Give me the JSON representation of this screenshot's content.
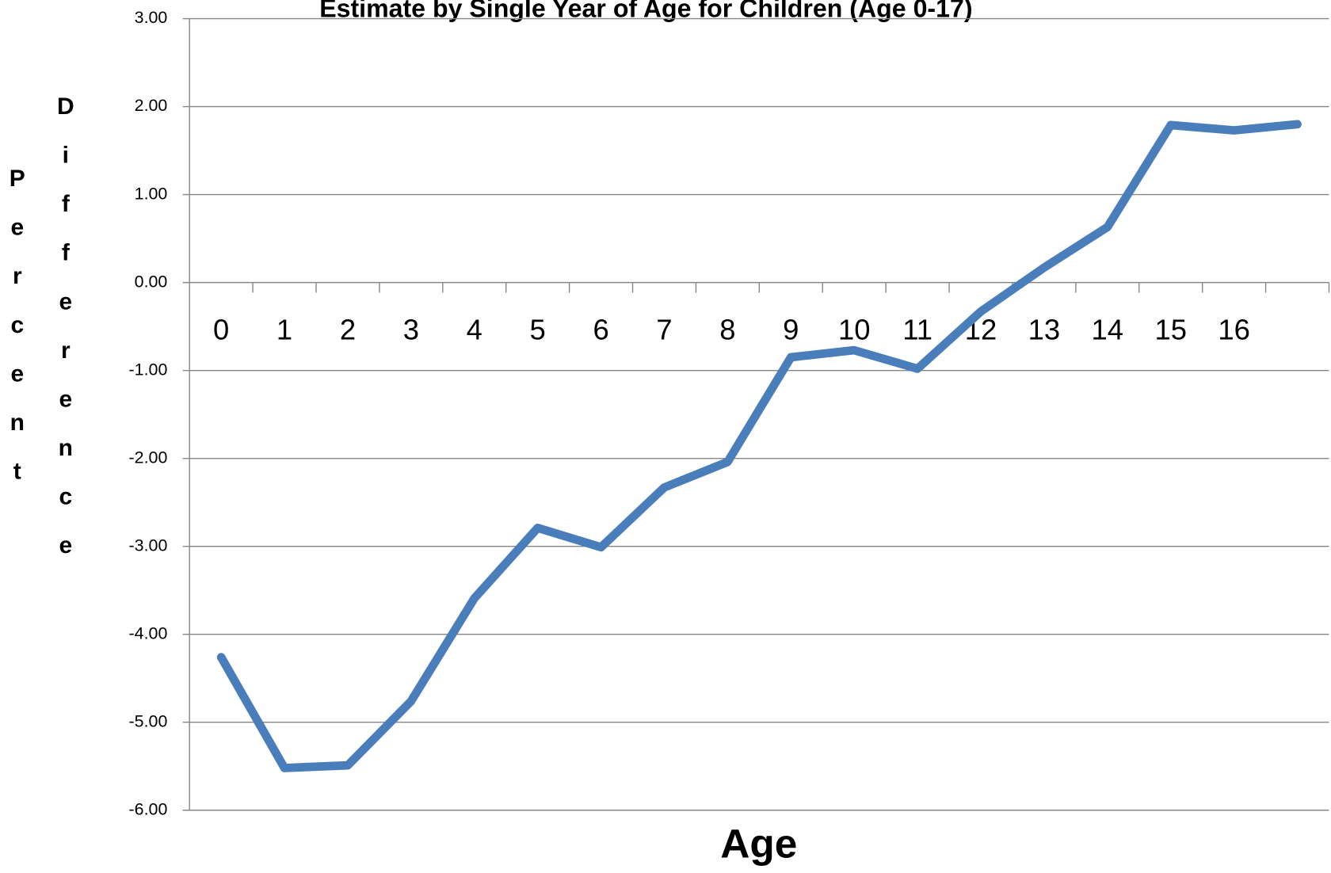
{
  "chart_data": {
    "type": "line",
    "title": "Estimate by Single Year of Age for Children (Age 0-17)",
    "x_label": "Age",
    "y_label_lines": [
      "Percent",
      "Difference"
    ],
    "categories": [
      "0",
      "1",
      "2",
      "3",
      "4",
      "5",
      "6",
      "7",
      "8",
      "9",
      "10",
      "11",
      "12",
      "13",
      "14",
      "15",
      "16",
      null
    ],
    "series": [
      {
        "name": "Percent Difference",
        "color": "#4a7ebb",
        "values": [
          -4.26,
          -5.52,
          -5.49,
          -4.76,
          -3.59,
          -2.79,
          -3.01,
          -2.33,
          -2.04,
          -0.85,
          -0.77,
          -0.98,
          -0.33,
          0.17,
          0.63,
          1.79,
          1.73,
          1.8
        ]
      }
    ],
    "ylim": [
      -6,
      3
    ],
    "yticks": [
      {
        "value": -6,
        "label": "-6.00"
      },
      {
        "value": -5,
        "label": "-5.00"
      },
      {
        "value": -4,
        "label": "-4.00"
      },
      {
        "value": -3,
        "label": "-3.00"
      },
      {
        "value": -2,
        "label": "-2.00"
      },
      {
        "value": -1,
        "label": "-1.00"
      },
      {
        "value": 0,
        "label": "0.00"
      },
      {
        "value": 1,
        "label": "1.00"
      },
      {
        "value": 2,
        "label": "2.00"
      },
      {
        "value": 3,
        "label": "3.00"
      }
    ],
    "grid": true
  }
}
